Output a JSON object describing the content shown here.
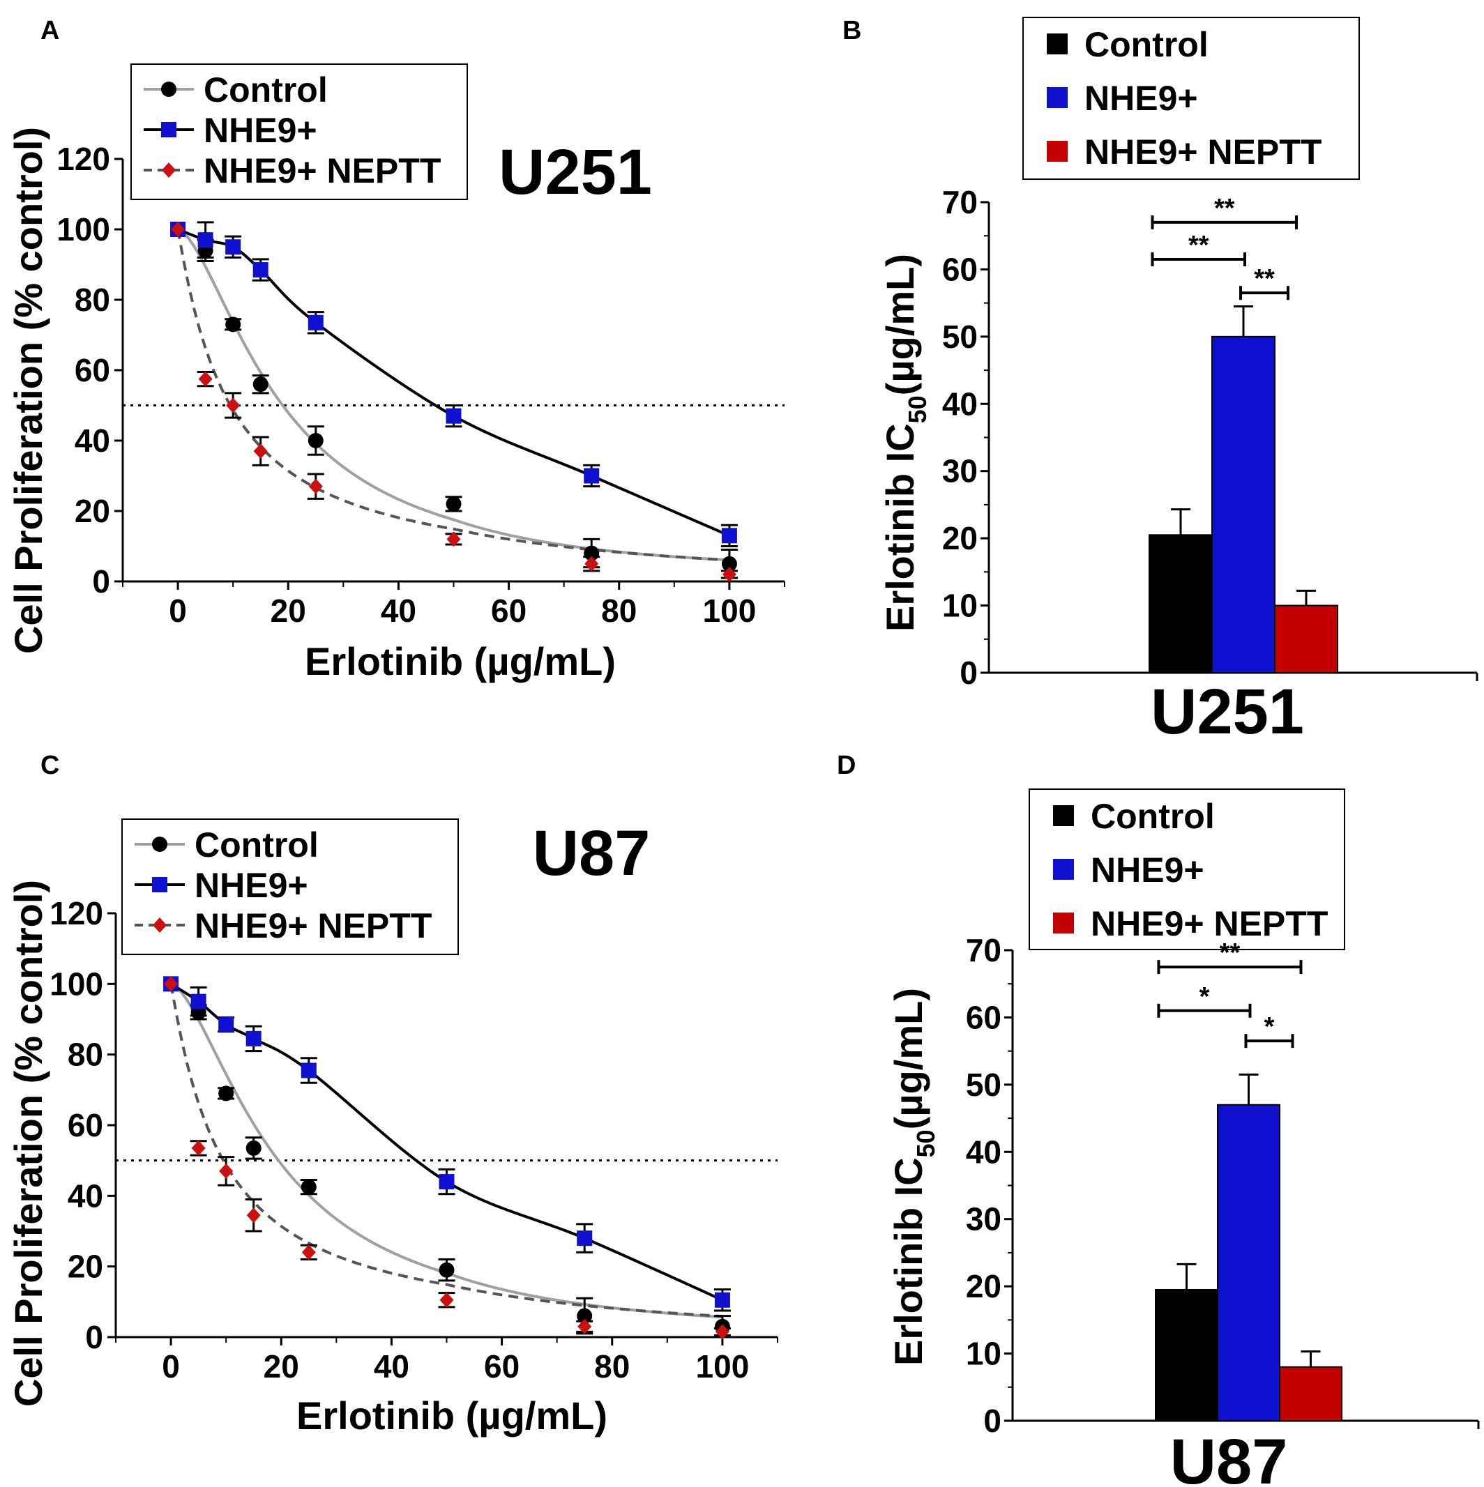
{
  "panels": [
    {
      "letter": "A",
      "chart_data": {
        "type": "scatter",
        "title": "U251",
        "xlabel": "Erlotinib (µg/mL)",
        "ylabel": "Cell Proliferation (% control)",
        "xlim": [
          -10,
          110
        ],
        "ylim": [
          0,
          120
        ],
        "x_ticks": [
          0,
          20,
          40,
          60,
          80,
          100
        ],
        "y_ticks": [
          0,
          20,
          40,
          60,
          80,
          100,
          120
        ],
        "reference_line_y": 50,
        "legend_position": "top-left",
        "series": [
          {
            "name": "Control",
            "color": "#000000",
            "marker": "circle",
            "line_color": "#a0a0a0",
            "line_style": "solid",
            "x": [
              0,
              5,
              10,
              15,
              25,
              50,
              75,
              100
            ],
            "y": [
              100,
              94,
              73,
              56,
              40,
              22,
              8,
              5
            ],
            "err": [
              0,
              3,
              1.5,
              2.5,
              4,
              2,
              4,
              4
            ]
          },
          {
            "name": "NHE9+",
            "color": "#1010d0",
            "marker": "square",
            "line_color": "#000000",
            "line_style": "solid",
            "x": [
              0,
              5,
              10,
              15,
              25,
              50,
              75,
              100
            ],
            "y": [
              100,
              97,
              95,
              88.5,
              73.5,
              47,
              30,
              13
            ],
            "err": [
              0,
              5,
              3,
              3,
              3,
              3,
              3,
              3
            ]
          },
          {
            "name": "NHE9+ NEPTT",
            "color": "#cc1010",
            "marker": "diamond",
            "line_color": "#555555",
            "line_style": "dashed",
            "x": [
              0,
              5,
              10,
              15,
              25,
              50,
              75,
              100
            ],
            "y": [
              100,
              57.5,
              50,
              37,
              27,
              12,
              5,
              2
            ],
            "err": [
              0,
              2,
              3.5,
              4,
              3.5,
              1.5,
              2,
              1
            ]
          }
        ]
      }
    },
    {
      "letter": "B",
      "chart_data": {
        "type": "bar",
        "xlabel": "U251",
        "ylabel_main": "Erlotinib IC",
        "ylabel_sub": "50",
        "ylabel_tail": "(µg/mL)",
        "ylim": [
          0,
          70
        ],
        "y_ticks": [
          0,
          10,
          20,
          30,
          40,
          50,
          60,
          70
        ],
        "legend_position": "top",
        "series": [
          {
            "name": "Control",
            "color": "#000000",
            "value": 20.5,
            "err": 3.8
          },
          {
            "name": "NHE9+",
            "color": "#1010d0",
            "value": 50,
            "err": 4.5
          },
          {
            "name": "NHE9+ NEPTT",
            "color": "#c40000",
            "value": 10,
            "err": 2.2
          }
        ],
        "significance": [
          {
            "from": 0,
            "to": 2,
            "label": "**",
            "y": 67
          },
          {
            "from": 0,
            "to": 1,
            "label": "**",
            "y": 61.5
          },
          {
            "from": 1,
            "to": 2,
            "label": "**",
            "y": 56.5
          }
        ]
      }
    },
    {
      "letter": "C",
      "chart_data": {
        "type": "scatter",
        "title": "U87",
        "xlabel": "Erlotinib (µg/mL)",
        "ylabel": "Cell Proliferation (% control)",
        "xlim": [
          -10,
          110
        ],
        "ylim": [
          0,
          120
        ],
        "x_ticks": [
          0,
          20,
          40,
          60,
          80,
          100
        ],
        "y_ticks": [
          0,
          20,
          40,
          60,
          80,
          100,
          120
        ],
        "reference_line_y": 50,
        "legend_position": "top-left",
        "series": [
          {
            "name": "Control",
            "color": "#000000",
            "marker": "circle",
            "line_color": "#a0a0a0",
            "line_style": "solid",
            "x": [
              0,
              5,
              10,
              15,
              25,
              50,
              75,
              100
            ],
            "y": [
              100,
              92,
              69,
              53.5,
              42.5,
              19,
              6,
              3
            ],
            "err": [
              0,
              2,
              1.5,
              3,
              2,
              3,
              5,
              3
            ]
          },
          {
            "name": "NHE9+",
            "color": "#1010d0",
            "marker": "square",
            "line_color": "#000000",
            "line_style": "solid",
            "x": [
              0,
              5,
              10,
              15,
              25,
              50,
              75,
              100
            ],
            "y": [
              100,
              95,
              88.5,
              84.5,
              75.5,
              44,
              28,
              10.5
            ],
            "err": [
              0,
              4,
              2,
              3.5,
              3.5,
              3.5,
              4,
              3
            ]
          },
          {
            "name": "NHE9+ NEPTT",
            "color": "#cc1010",
            "marker": "diamond",
            "line_color": "#555555",
            "line_style": "dashed",
            "x": [
              0,
              5,
              10,
              15,
              25,
              50,
              75,
              100
            ],
            "y": [
              100,
              53.5,
              47,
              34.5,
              24,
              10.5,
              3,
              1.5
            ],
            "err": [
              0,
              2,
              4,
              4.5,
              2,
              2,
              1.5,
              1
            ]
          }
        ]
      }
    },
    {
      "letter": "D",
      "chart_data": {
        "type": "bar",
        "xlabel": "U87",
        "ylabel_main": "Erlotinib IC",
        "ylabel_sub": "50",
        "ylabel_tail": "(µg/mL)",
        "ylim": [
          0,
          70
        ],
        "y_ticks": [
          0,
          10,
          20,
          30,
          40,
          50,
          60,
          70
        ],
        "legend_position": "top",
        "series": [
          {
            "name": "Control",
            "color": "#000000",
            "value": 19.5,
            "err": 3.8
          },
          {
            "name": "NHE9+",
            "color": "#1010d0",
            "value": 47,
            "err": 4.5
          },
          {
            "name": "NHE9+ NEPTT",
            "color": "#c40000",
            "value": 8,
            "err": 2.3
          }
        ],
        "significance": [
          {
            "from": 0,
            "to": 2,
            "label": "**",
            "y": 67.5
          },
          {
            "from": 0,
            "to": 1,
            "label": "*",
            "y": 61
          },
          {
            "from": 1,
            "to": 2,
            "label": "*",
            "y": 56.5
          }
        ]
      }
    }
  ]
}
